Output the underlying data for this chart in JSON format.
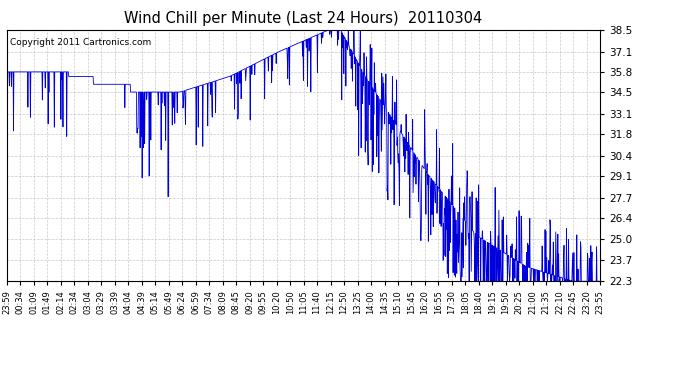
{
  "title": "Wind Chill per Minute (Last 24 Hours)  20110304",
  "copyright_text": "Copyright 2011 Cartronics.com",
  "line_color": "#0000dd",
  "background_color": "#ffffff",
  "plot_bg_color": "#ffffff",
  "grid_color": "#bbbbbb",
  "ylim": [
    22.3,
    38.5
  ],
  "yticks": [
    22.3,
    23.7,
    25.0,
    26.4,
    27.7,
    29.1,
    30.4,
    31.8,
    33.1,
    34.5,
    35.8,
    37.1,
    38.5
  ],
  "xtick_labels": [
    "23:59",
    "00:34",
    "01:09",
    "01:49",
    "02:14",
    "02:34",
    "03:04",
    "03:29",
    "03:39",
    "04:04",
    "04:39",
    "05:14",
    "05:49",
    "06:24",
    "06:59",
    "07:34",
    "08:09",
    "08:45",
    "09:20",
    "09:55",
    "10:20",
    "10:50",
    "11:05",
    "11:40",
    "12:15",
    "12:50",
    "13:25",
    "14:00",
    "14:35",
    "15:10",
    "15:45",
    "16:20",
    "16:55",
    "17:30",
    "18:05",
    "18:40",
    "19:15",
    "19:50",
    "20:25",
    "21:00",
    "21:35",
    "22:10",
    "22:45",
    "23:20",
    "23:55"
  ]
}
